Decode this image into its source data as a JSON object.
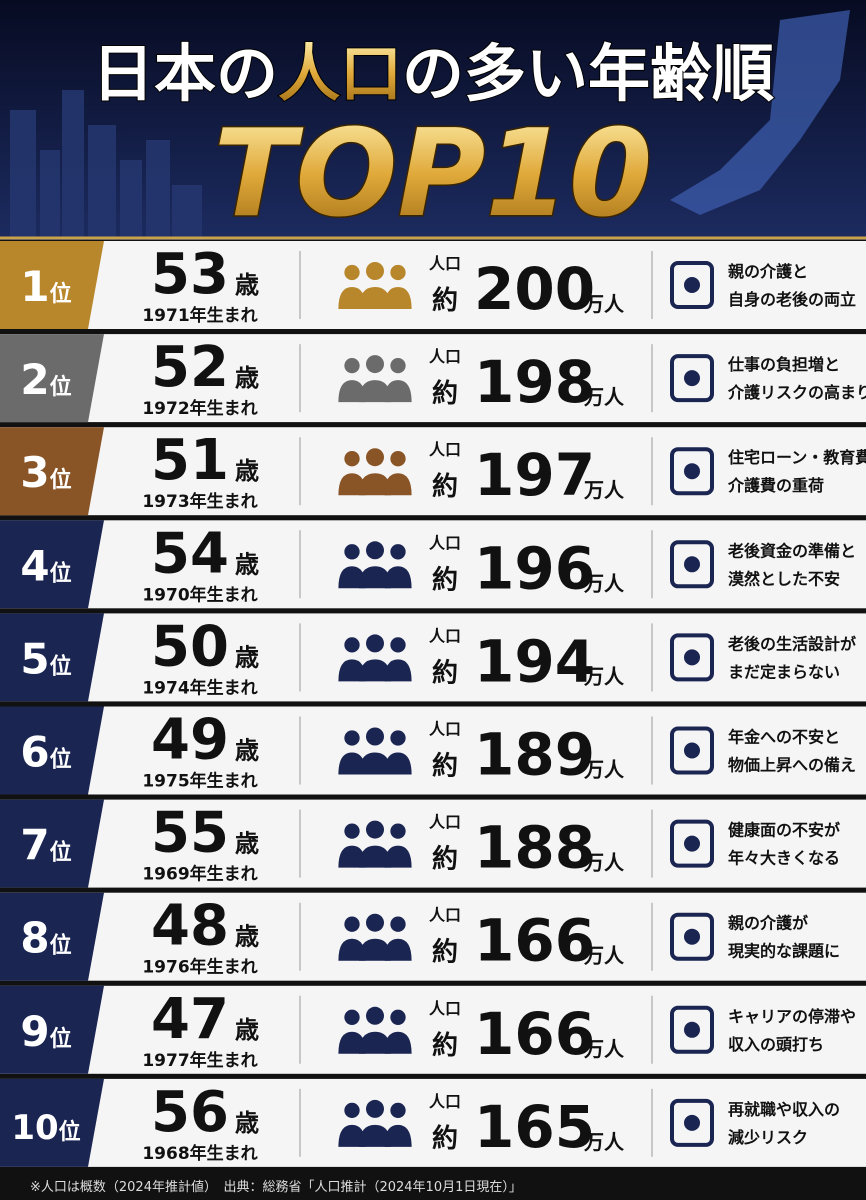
{
  "header": {
    "title": [
      "日本の",
      "人口",
      "の多い年齢順"
    ],
    "subtitle": "TOP10"
  },
  "rows": [
    {
      "rank": "1",
      "rank_unit": "位",
      "age": 53,
      "age_unit": "歳",
      "born": "1971年生まれ",
      "pop_label": "人口",
      "approx": "約",
      "population": 200,
      "pop_unit": "万人",
      "note": [
        "親の介護と",
        "自身の老後の両立"
      ],
      "color": "#b8862b"
    },
    {
      "rank": "2",
      "rank_unit": "位",
      "age": 52,
      "age_unit": "歳",
      "born": "1972年生まれ",
      "pop_label": "人口",
      "approx": "約",
      "population": 198,
      "pop_unit": "万人",
      "note": [
        "仕事の負担増と",
        "介護リスクの高まり"
      ],
      "color": "#6b6b6b"
    },
    {
      "rank": "3",
      "rank_unit": "位",
      "age": 51,
      "age_unit": "歳",
      "born": "1973年生まれ",
      "pop_label": "人口",
      "approx": "約",
      "population": 197,
      "pop_unit": "万人",
      "note": [
        "住宅ローン・教育費",
        "介護費の重荷"
      ],
      "color": "#8a5526"
    },
    {
      "rank": "4",
      "rank_unit": "位",
      "age": 54,
      "age_unit": "歳",
      "born": "1970年生まれ",
      "pop_label": "人口",
      "approx": "約",
      "population": 196,
      "pop_unit": "万人",
      "note": [
        "老後資金の準備と",
        "漠然とした不安"
      ],
      "color": "#1a2552"
    },
    {
      "rank": "5",
      "rank_unit": "位",
      "age": 50,
      "age_unit": "歳",
      "born": "1974年生まれ",
      "pop_label": "人口",
      "approx": "約",
      "population": 194,
      "pop_unit": "万人",
      "note": [
        "老後の生活設計が",
        "まだ定まらない"
      ],
      "color": "#1a2552"
    },
    {
      "rank": "6",
      "rank_unit": "位",
      "age": 49,
      "age_unit": "歳",
      "born": "1975年生まれ",
      "pop_label": "人口",
      "approx": "約",
      "population": 189,
      "pop_unit": "万人",
      "note": [
        "年金への不安と",
        "物価上昇への備え"
      ],
      "color": "#1a2552"
    },
    {
      "rank": "7",
      "rank_unit": "位",
      "age": 55,
      "age_unit": "歳",
      "born": "1969年生まれ",
      "pop_label": "人口",
      "approx": "約",
      "population": 188,
      "pop_unit": "万人",
      "note": [
        "健康面の不安が",
        "年々大きくなる"
      ],
      "color": "#1a2552"
    },
    {
      "rank": "8",
      "rank_unit": "位",
      "age": 48,
      "age_unit": "歳",
      "born": "1976年生まれ",
      "pop_label": "人口",
      "approx": "約",
      "population": 166,
      "pop_unit": "万人",
      "note": [
        "親の介護が",
        "現実的な課題に"
      ],
      "color": "#1a2552"
    },
    {
      "rank": "9",
      "rank_unit": "位",
      "age": 47,
      "age_unit": "歳",
      "born": "1977年生まれ",
      "pop_label": "人口",
      "approx": "約",
      "population": 166,
      "pop_unit": "万人",
      "note": [
        "キャリアの停滞や",
        "収入の頭打ち"
      ],
      "color": "#1a2552"
    },
    {
      "rank": "10",
      "rank_unit": "位",
      "age": 56,
      "age_unit": "歳",
      "born": "1968年生まれ",
      "pop_label": "人口",
      "approx": "約",
      "population": 165,
      "pop_unit": "万人",
      "note": [
        "再就職や収入の",
        "減少リスク"
      ],
      "color": "#1a2552"
    }
  ],
  "footer": "※人口は概数（2024年推計値）　出典：総務省「人口推計（2024年10月1日現在）」"
}
